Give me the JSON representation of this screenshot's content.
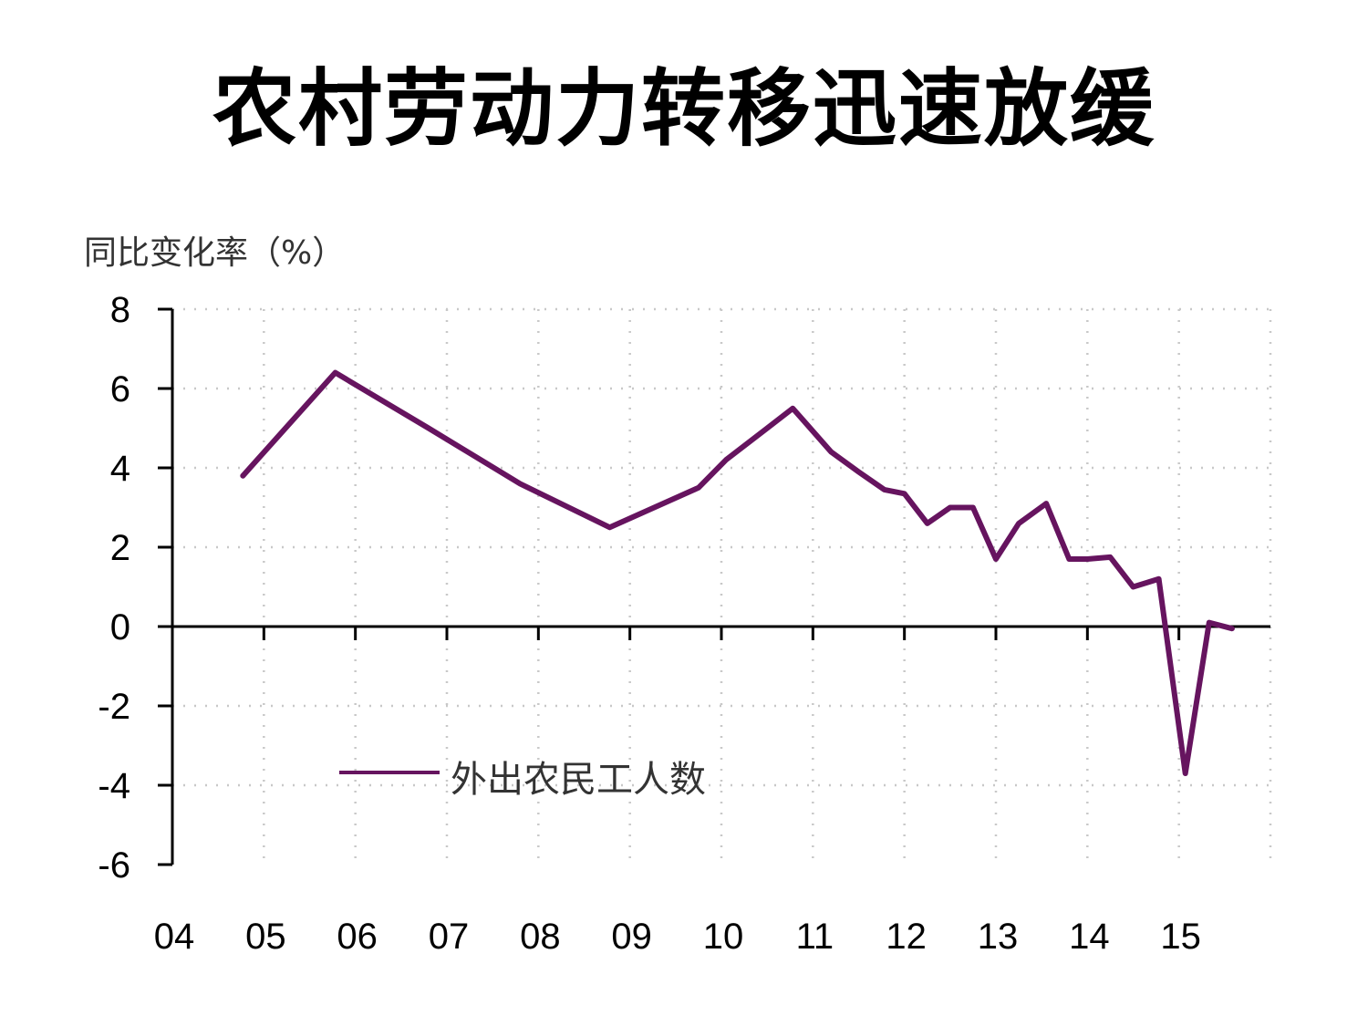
{
  "chart_data": {
    "type": "line",
    "title": "农村劳动力转移迅速放缓",
    "ylabel": "同比变化率（%）",
    "xlabel": "",
    "ylim": [
      -6,
      8
    ],
    "yticks": [
      "8",
      "6",
      "4",
      "2",
      "0",
      "-2",
      "-4",
      "-6"
    ],
    "ytick_values": [
      8,
      6,
      4,
      2,
      0,
      -2,
      -4,
      -6
    ],
    "x_tick_labels": [
      "04",
      "05",
      "06",
      "07",
      "08",
      "09",
      "10",
      "11",
      "12",
      "13",
      "14",
      "15"
    ],
    "x_range": [
      2004,
      2016
    ],
    "grid": true,
    "legend_position": "lower-left",
    "series": [
      {
        "name": "外出农民工人数",
        "color": "#66145f",
        "x": [
          2004.77,
          2005.78,
          2006.8,
          2007.8,
          2008.78,
          2009.75,
          2010.05,
          2010.5,
          2010.78,
          2011.2,
          2011.5,
          2011.78,
          2012.0,
          2012.25,
          2012.5,
          2012.75,
          2013.0,
          2013.25,
          2013.55,
          2013.8,
          2014.0,
          2014.25,
          2014.5,
          2014.78,
          2015.07,
          2015.33,
          2015.58
        ],
        "y": [
          3.8,
          6.4,
          5.0,
          3.6,
          2.5,
          3.5,
          4.2,
          5.0,
          5.5,
          4.4,
          3.9,
          3.45,
          3.35,
          2.6,
          3.0,
          3.0,
          1.7,
          2.6,
          3.1,
          1.7,
          1.7,
          1.75,
          1.0,
          1.2,
          -3.7,
          0.1,
          -0.05
        ]
      }
    ]
  }
}
